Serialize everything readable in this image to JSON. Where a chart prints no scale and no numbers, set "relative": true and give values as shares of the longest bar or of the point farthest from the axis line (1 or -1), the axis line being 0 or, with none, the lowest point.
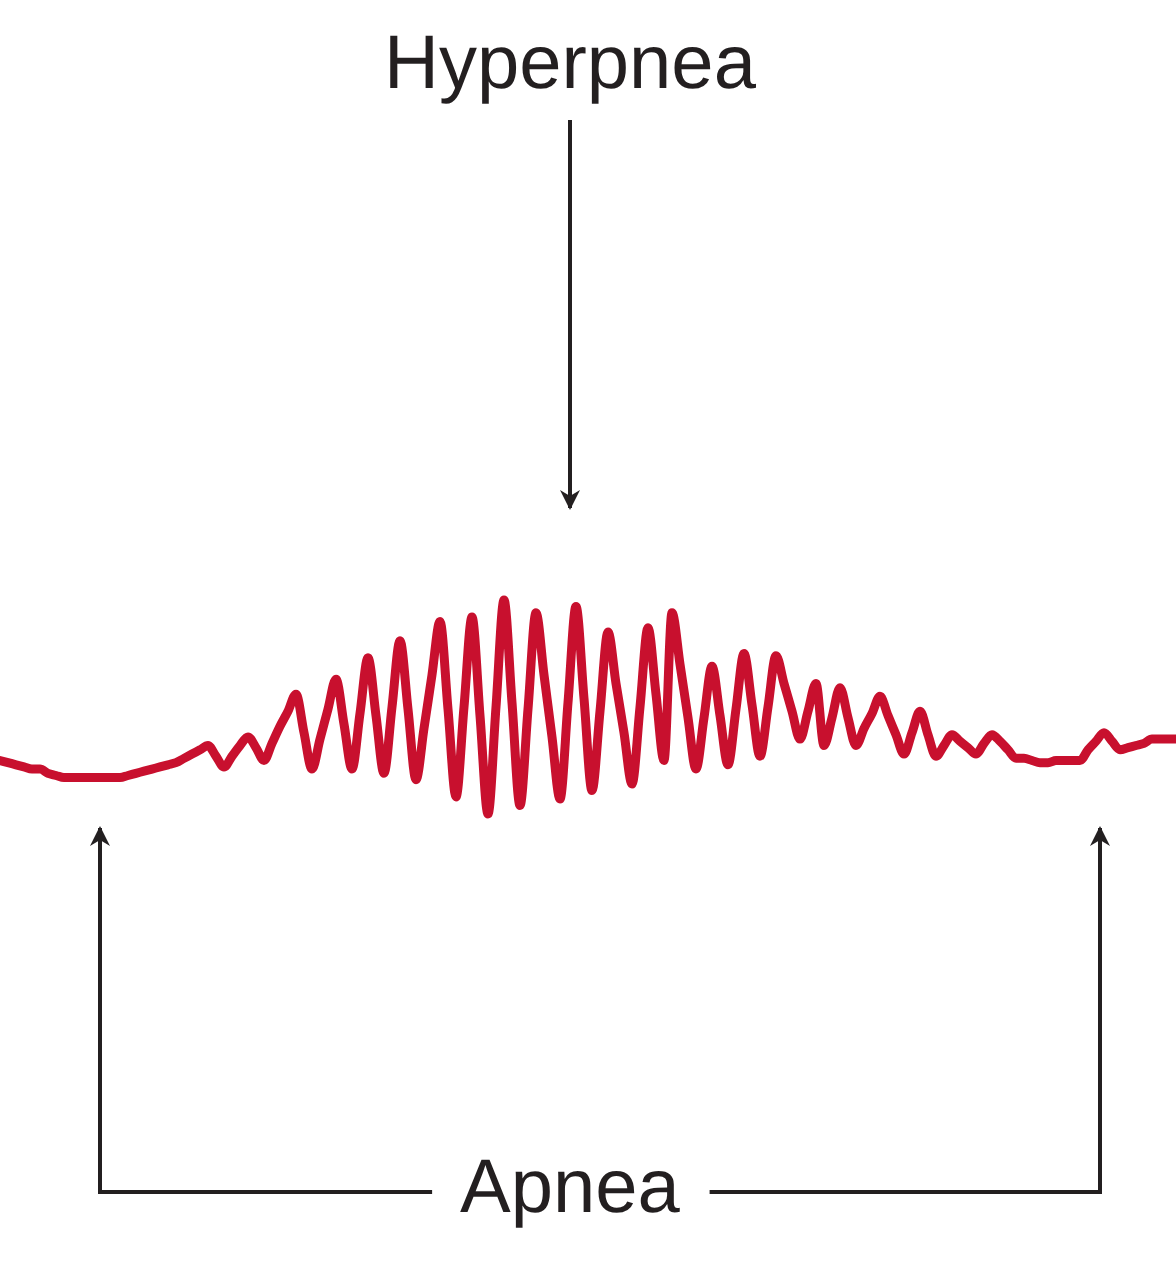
{
  "chart_data": {
    "type": "line",
    "relative": true,
    "color": "#c8102e",
    "annotations": [
      "Hyperpnea",
      "Apnea"
    ],
    "categories": [
      null,
      null,
      null,
      null,
      null,
      null,
      null,
      null,
      null,
      null,
      null,
      null,
      null,
      null,
      null,
      null,
      null,
      null,
      null,
      null,
      null,
      null,
      null,
      null,
      null,
      null,
      null,
      null,
      null,
      null,
      null,
      null,
      null,
      null,
      null,
      null,
      null,
      null,
      null,
      null,
      null,
      null,
      null,
      null,
      null,
      null,
      null,
      null,
      null,
      null,
      null,
      null,
      null,
      null,
      null,
      null,
      null,
      null,
      null,
      null,
      null,
      null,
      null,
      null,
      null,
      null,
      null,
      null,
      null,
      null,
      null,
      null,
      null,
      null,
      null,
      null,
      null,
      null,
      null,
      null,
      null,
      null,
      null,
      null,
      null,
      null,
      null,
      null,
      null,
      null,
      null,
      null,
      null,
      null,
      null,
      null,
      null,
      null,
      null,
      null,
      null,
      null,
      null,
      null,
      null,
      null,
      null,
      null,
      null,
      null,
      null,
      null,
      null,
      null,
      null,
      null,
      null,
      null,
      null,
      null,
      null,
      null,
      null,
      null,
      null,
      null,
      null,
      null,
      null,
      null,
      null,
      null,
      null,
      null,
      null,
      null,
      null,
      null,
      null,
      null,
      null,
      null,
      null,
      null,
      null,
      null,
      null,
      null
    ],
    "values": [
      0.25,
      0.24,
      0.23,
      0.22,
      0.21,
      0.21,
      0.19,
      0.18,
      0.17,
      0.17,
      0.17,
      0.17,
      0.17,
      0.17,
      0.17,
      0.17,
      0.18,
      0.19,
      0.2,
      0.21,
      0.22,
      0.23,
      0.24,
      0.26,
      0.28,
      0.3,
      0.32,
      0.27,
      0.22,
      0.27,
      0.32,
      0.36,
      0.31,
      0.25,
      0.33,
      0.41,
      0.48,
      0.56,
      0.38,
      0.21,
      0.35,
      0.49,
      0.63,
      0.42,
      0.21,
      0.47,
      0.73,
      0.46,
      0.19,
      0.5,
      0.81,
      0.49,
      0.16,
      0.4,
      0.65,
      0.9,
      0.49,
      0.08,
      0.5,
      0.92,
      0.46,
      0,
      0.5,
      1,
      0.52,
      0.04,
      0.49,
      0.94,
      0.65,
      0.36,
      0.07,
      0.52,
      0.97,
      0.54,
      0.11,
      0.48,
      0.85,
      0.61,
      0.38,
      0.14,
      0.5,
      0.87,
      0.56,
      0.25,
      0.94,
      0.7,
      0.45,
      0.21,
      0.45,
      0.69,
      0.46,
      0.23,
      0.49,
      0.75,
      0.51,
      0.27,
      0.5,
      0.74,
      0.61,
      0.48,
      0.35,
      0.48,
      0.61,
      0.32,
      0.45,
      0.59,
      0.45,
      0.32,
      0.4,
      0.47,
      0.55,
      0.46,
      0.37,
      0.28,
      0.38,
      0.48,
      0.37,
      0.27,
      0.32,
      0.37,
      0.34,
      0.31,
      0.28,
      0.33,
      0.37,
      0.34,
      0.3,
      0.26,
      0.26,
      0.25,
      0.24,
      0.24,
      0.25,
      0.25,
      0.25,
      0.25,
      0.3,
      0.34,
      0.38,
      0.34,
      0.3,
      0.31,
      0.32,
      0.33,
      0.35,
      0.35,
      0.35,
      0.35
    ]
  }
}
